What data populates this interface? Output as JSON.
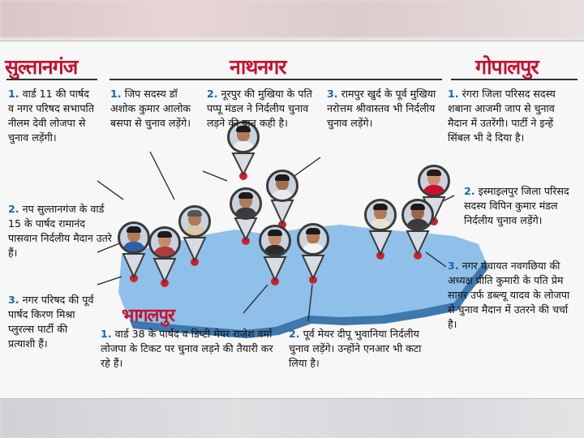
{
  "headers": {
    "sultanganj": "सुल्तानगंज",
    "nathnagar": "नाथनगर",
    "gopalpur": "गोपालपुर"
  },
  "city_label": "भागलपुर",
  "sultanganj_notes": [
    {
      "num": "1.",
      "text": "वार्ड 11 की पार्षद व नगर परिषद सभापति नीलम देवी लोजपा से चुनाव लड़ेंगी।"
    },
    {
      "num": "2.",
      "text": "नप सुल्तानगंज के वार्ड 15 के पार्षद रामानंद पासवान निर्दलीय मैदान उतरे हैं।"
    },
    {
      "num": "3.",
      "text": "नगर परिषद की पूर्व पार्षद किरण मिश्रा प्लुरल्स पार्टी की प्रत्याशी हैं।"
    }
  ],
  "nathnagar_notes": [
    {
      "num": "1.",
      "text": "जिप सदस्य डॉ अशोक कुमार आलोक बसपा से चुनाव लड़ेंगे।"
    },
    {
      "num": "2.",
      "text": "नूरपुर की मुखिया के पति पप्पू मंडल ने निर्दलीय चुनाव लड़ने की बात कही है।"
    },
    {
      "num": "3.",
      "text": "रामपुर खुर्द के पूर्व मुखिया नरोत्तम श्रीवास्तव भी निर्दलीय चुनाव लड़ेंगे।"
    }
  ],
  "gopalpur_notes": [
    {
      "num": "1.",
      "text": "रंगरा जिला परिसद सदस्य शबाना आजमी जाप से चुनाव मैदान में उतरेंगी। पार्टी ने इन्हें सिंबल भी दे दिया है।"
    },
    {
      "num": "2.",
      "text": "इस्माइलपुर जिला परिसद सदस्य विपिन कुमार मंडल निर्दलीय चुनाव लड़ेंगे।"
    },
    {
      "num": "3.",
      "text": "नगर पंचायत नवगछिया की अध्यक्ष प्रीति कुमारी के पति प्रेम सागर उर्फ डब्ल्यू यादव के लोजपा से चुनाव मैदान में उतरने की चर्चा है।"
    }
  ],
  "bhagalpur_notes": [
    {
      "num": "1.",
      "text": "वार्ड 38 के पार्षद व डिप्टी मेयर राजेश वर्मा लोजपा के टिकट पर चुनाव लड़ने की तैयारी कर रहे हैं।"
    },
    {
      "num": "2.",
      "text": "पूर्व मेयर दीपू भुवानिया निर्दलीय चुनाव लड़ेंगे। उन्होंने एनआर भी कटा लिया है।"
    }
  ],
  "colors": {
    "header_red": "#c8102e",
    "number_blue": "#1a66b3",
    "map_blue": "#5e9fd6",
    "map_shadow": "#3e78ad",
    "pin_red": "#d0202a"
  }
}
